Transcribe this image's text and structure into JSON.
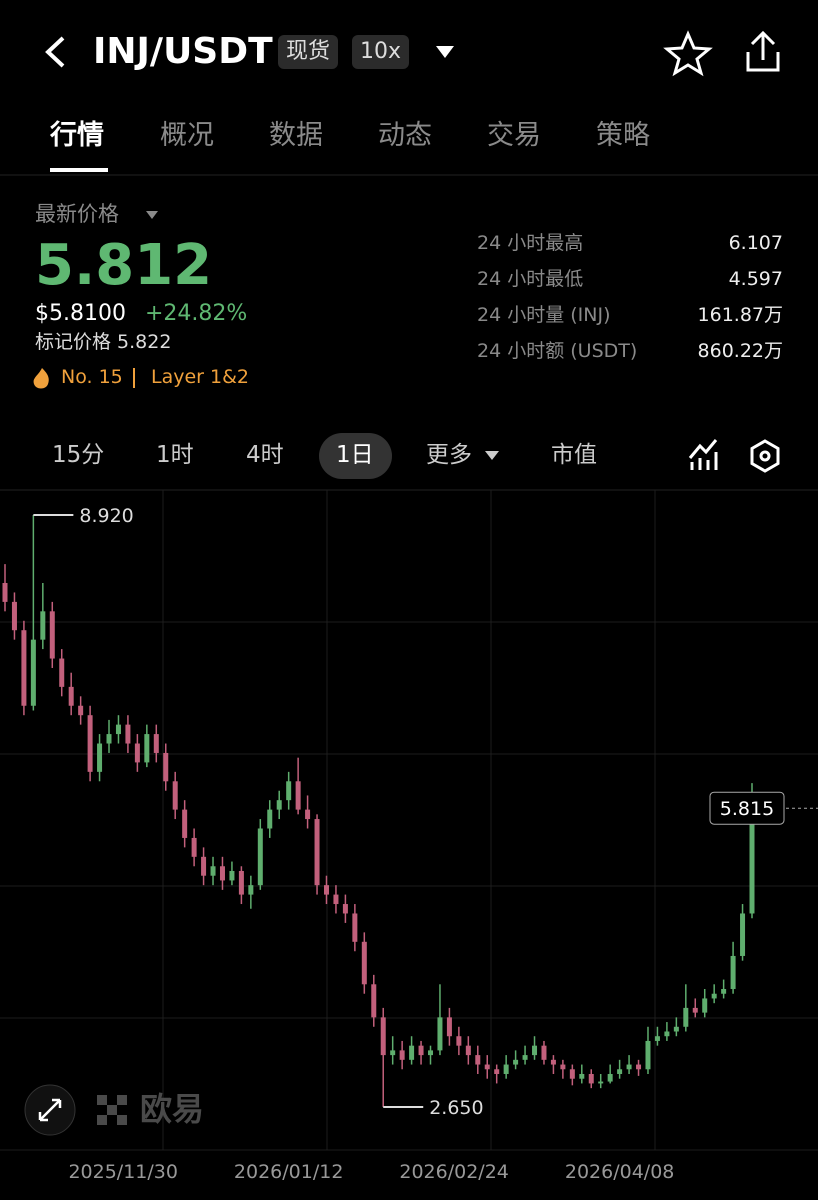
{
  "header": {
    "pair": "INJ/USDT",
    "market_type": "现货",
    "leverage": "10x"
  },
  "tabs": [
    "行情",
    "概况",
    "数据",
    "动态",
    "交易",
    "策略"
  ],
  "price": {
    "label": "最新价格",
    "last": "5.812",
    "usd": "$5.8100",
    "change": "+24.82%",
    "mark": "标记价格 5.822",
    "rank": "No. 15",
    "sector": "Layer 1&2"
  },
  "stats": [
    [
      "24 小时最高",
      "6.107"
    ],
    [
      "24 小时最低",
      "4.597"
    ],
    [
      "24 小时量 (INJ)",
      "161.87万"
    ],
    [
      "24 小时额 (USDT)",
      "860.22万"
    ]
  ],
  "intervals": [
    "15分",
    "1时",
    "4时",
    "1日",
    "更多",
    "市值"
  ],
  "watermark": "欧易",
  "chart_data": {
    "type": "candlestick",
    "up_color": "#5fae6e",
    "down_color": "#c2607c",
    "ylim": [
      2.195,
      9.185
    ],
    "xlim": [
      0,
      79
    ],
    "xticks": [
      {
        "value": 12.5,
        "label": "2025/11/30"
      },
      {
        "value": 30,
        "label": "2026/01/12"
      },
      {
        "value": 47.5,
        "label": "2026/02/24"
      },
      {
        "value": 65,
        "label": "2026/04/08"
      }
    ],
    "high_label": {
      "value": 8.92,
      "label": "8.920"
    },
    "low_label": {
      "value": 2.65,
      "label": "2.650"
    },
    "last_label": 5.815,
    "candles": [
      [
        8.2,
        8.4,
        7.9,
        8.0
      ],
      [
        8.0,
        8.1,
        7.6,
        7.7
      ],
      [
        7.7,
        7.8,
        6.8,
        6.9
      ],
      [
        6.9,
        8.92,
        6.85,
        7.6
      ],
      [
        7.6,
        8.2,
        7.5,
        7.9
      ],
      [
        7.9,
        8.0,
        7.3,
        7.4
      ],
      [
        7.4,
        7.5,
        7.0,
        7.1
      ],
      [
        7.1,
        7.25,
        6.8,
        6.9
      ],
      [
        6.9,
        7.0,
        6.7,
        6.8
      ],
      [
        6.8,
        6.9,
        6.1,
        6.2
      ],
      [
        6.2,
        6.6,
        6.1,
        6.5
      ],
      [
        6.5,
        6.75,
        6.4,
        6.6
      ],
      [
        6.6,
        6.8,
        6.5,
        6.7
      ],
      [
        6.7,
        6.8,
        6.4,
        6.5
      ],
      [
        6.5,
        6.6,
        6.2,
        6.3
      ],
      [
        6.3,
        6.7,
        6.25,
        6.6
      ],
      [
        6.6,
        6.7,
        6.3,
        6.4
      ],
      [
        6.4,
        6.5,
        6.0,
        6.1
      ],
      [
        6.1,
        6.2,
        5.7,
        5.8
      ],
      [
        5.8,
        5.9,
        5.4,
        5.5
      ],
      [
        5.5,
        5.6,
        5.2,
        5.3
      ],
      [
        5.3,
        5.4,
        5.0,
        5.1
      ],
      [
        5.1,
        5.3,
        5.0,
        5.2
      ],
      [
        5.2,
        5.3,
        4.95,
        5.05
      ],
      [
        5.05,
        5.25,
        5.0,
        5.15
      ],
      [
        5.15,
        5.2,
        4.8,
        4.9
      ],
      [
        4.9,
        5.1,
        4.75,
        5.0
      ],
      [
        5.0,
        5.7,
        4.95,
        5.6
      ],
      [
        5.6,
        5.9,
        5.5,
        5.8
      ],
      [
        5.8,
        6.0,
        5.7,
        5.9
      ],
      [
        5.9,
        6.2,
        5.8,
        6.1
      ],
      [
        6.1,
        6.35,
        5.75,
        5.8
      ],
      [
        5.8,
        5.95,
        5.6,
        5.7
      ],
      [
        5.7,
        5.75,
        4.9,
        5.0
      ],
      [
        5.0,
        5.1,
        4.8,
        4.9
      ],
      [
        4.9,
        5.0,
        4.7,
        4.8
      ],
      [
        4.8,
        4.9,
        4.6,
        4.7
      ],
      [
        4.7,
        4.8,
        4.3,
        4.4
      ],
      [
        4.4,
        4.5,
        3.85,
        3.95
      ],
      [
        3.95,
        4.05,
        3.5,
        3.6
      ],
      [
        3.6,
        3.7,
        2.65,
        3.2
      ],
      [
        3.2,
        3.4,
        3.1,
        3.25
      ],
      [
        3.25,
        3.35,
        3.05,
        3.15
      ],
      [
        3.15,
        3.4,
        3.1,
        3.3
      ],
      [
        3.3,
        3.35,
        3.1,
        3.2
      ],
      [
        3.2,
        3.3,
        3.1,
        3.25
      ],
      [
        3.25,
        3.95,
        3.2,
        3.6
      ],
      [
        3.6,
        3.7,
        3.3,
        3.4
      ],
      [
        3.4,
        3.5,
        3.2,
        3.3
      ],
      [
        3.3,
        3.4,
        3.1,
        3.2
      ],
      [
        3.2,
        3.3,
        3.0,
        3.1
      ],
      [
        3.1,
        3.2,
        2.95,
        3.05
      ],
      [
        3.05,
        3.1,
        2.9,
        3.0
      ],
      [
        3.0,
        3.2,
        2.95,
        3.1
      ],
      [
        3.1,
        3.25,
        3.05,
        3.15
      ],
      [
        3.15,
        3.3,
        3.1,
        3.2
      ],
      [
        3.2,
        3.4,
        3.15,
        3.3
      ],
      [
        3.3,
        3.35,
        3.1,
        3.15
      ],
      [
        3.15,
        3.2,
        3.0,
        3.1
      ],
      [
        3.1,
        3.15,
        2.95,
        3.05
      ],
      [
        3.05,
        3.1,
        2.88,
        2.95
      ],
      [
        2.95,
        3.1,
        2.9,
        3.0
      ],
      [
        3.0,
        3.05,
        2.85,
        2.9
      ],
      [
        2.9,
        3.0,
        2.85,
        2.92
      ],
      [
        2.92,
        3.1,
        2.9,
        3.0
      ],
      [
        3.0,
        3.15,
        2.95,
        3.05
      ],
      [
        3.05,
        3.2,
        3.0,
        3.1
      ],
      [
        3.1,
        3.15,
        2.98,
        3.05
      ],
      [
        3.05,
        3.5,
        3.0,
        3.35
      ],
      [
        3.35,
        3.5,
        3.3,
        3.4
      ],
      [
        3.4,
        3.55,
        3.35,
        3.45
      ],
      [
        3.45,
        3.6,
        3.4,
        3.5
      ],
      [
        3.5,
        3.95,
        3.45,
        3.7
      ],
      [
        3.7,
        3.8,
        3.6,
        3.65
      ],
      [
        3.65,
        3.9,
        3.6,
        3.8
      ],
      [
        3.8,
        3.95,
        3.75,
        3.85
      ],
      [
        3.85,
        4.0,
        3.8,
        3.9
      ],
      [
        3.9,
        4.4,
        3.85,
        4.25
      ],
      [
        4.25,
        4.8,
        4.2,
        4.7
      ],
      [
        4.7,
        6.08,
        4.65,
        5.815
      ]
    ]
  }
}
